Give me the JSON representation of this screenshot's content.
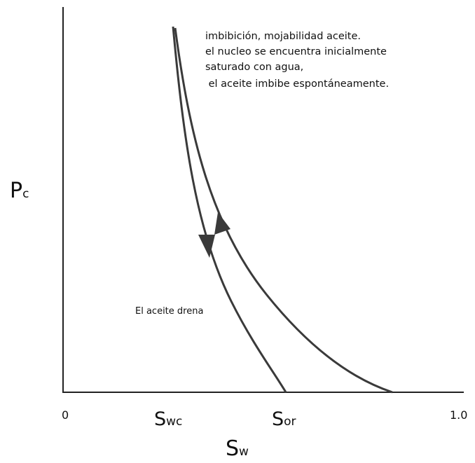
{
  "y_axis_label": {
    "base": "P",
    "sub": "c"
  },
  "x_axis_label": {
    "base": "S",
    "sub": "w"
  },
  "x_ticks": {
    "start": "0",
    "end": "1.0",
    "swc": {
      "base": "S",
      "sub": "wc"
    },
    "sor": {
      "base": "S",
      "sub": "or"
    }
  },
  "annotation": [
    "imbibición, mojabilidad aceite.",
    "el nucleo se encuentra inicialmente",
    "saturado con agua,",
    " el aceite imbibe espontáneamente."
  ],
  "drainage_label": "El aceite drena"
}
